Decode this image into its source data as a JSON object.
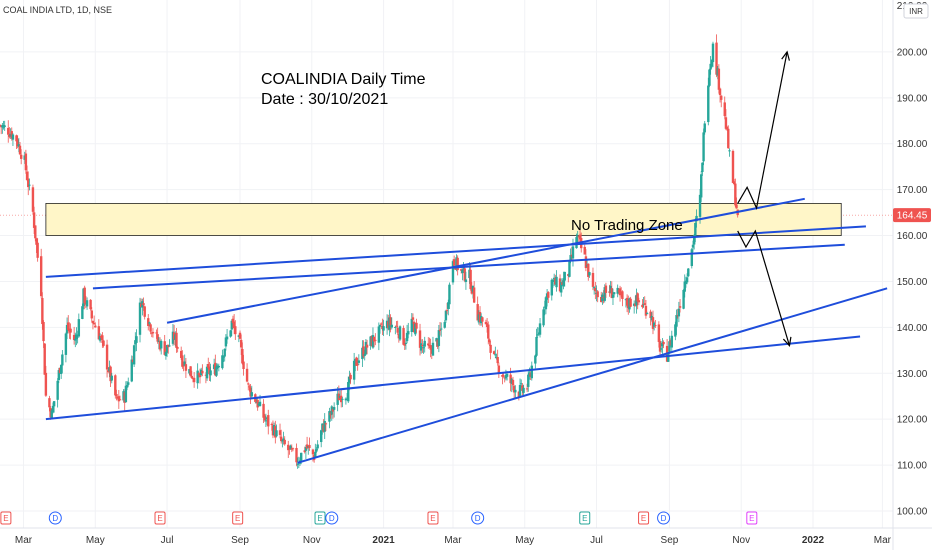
{
  "header": {
    "symbol_title": "COAL INDIA LTD, 1D, NSE",
    "currency_badge": "INR"
  },
  "annotations": {
    "title_line1": "COALINDIA Daily Time",
    "title_line2": "Date : 30/10/2021",
    "zone_label": "No Trading Zone"
  },
  "colors": {
    "up": "#26a69a",
    "down": "#ef5350",
    "trendline": "#1e4ddb",
    "zone_fill": "#fff6c8",
    "price_marker": "#ef5350",
    "earnings": "#ef5350",
    "dividend": "#2962ff",
    "split": "#26a69a",
    "upcoming": "#e040fb"
  },
  "chart_data": {
    "type": "candlestick",
    "instrument": "COAL INDIA LTD",
    "interval": "1D",
    "exchange": "NSE",
    "ylim": [
      100,
      210
    ],
    "yticks": [
      100,
      110,
      120,
      130,
      140,
      150,
      160,
      170,
      180,
      190,
      200
    ],
    "ytick_labels": [
      "100.00",
      "110.00",
      "120.00",
      "130.00",
      "140.00",
      "150.00",
      "160.00",
      "170.00",
      "180.00",
      "190.00",
      "200.00"
    ],
    "top_label": "210.00",
    "last_price": 164.45,
    "last_price_label": "164.45",
    "x_start": "2020-02-10",
    "x_end": "2022-03-10",
    "xticks": [
      {
        "date": "2020-03-01",
        "label": "Mar"
      },
      {
        "date": "2020-05-01",
        "label": "May"
      },
      {
        "date": "2020-07-01",
        "label": "Jul"
      },
      {
        "date": "2020-09-01",
        "label": "Sep"
      },
      {
        "date": "2020-11-01",
        "label": "Nov"
      },
      {
        "date": "2021-01-01",
        "label": "2021"
      },
      {
        "date": "2021-03-01",
        "label": "Mar"
      },
      {
        "date": "2021-05-01",
        "label": "May"
      },
      {
        "date": "2021-07-01",
        "label": "Jul"
      },
      {
        "date": "2021-09-01",
        "label": "Sep"
      },
      {
        "date": "2021-11-01",
        "label": "Nov"
      },
      {
        "date": "2022-01-01",
        "label": "2022"
      },
      {
        "date": "2022-03-01",
        "label": "Mar"
      }
    ],
    "price_path": [
      [
        "2020-02-10",
        184
      ],
      [
        "2020-02-17",
        183
      ],
      [
        "2020-02-24",
        181
      ],
      [
        "2020-03-02",
        176
      ],
      [
        "2020-03-09",
        165
      ],
      [
        "2020-03-16",
        148
      ],
      [
        "2020-03-20",
        125
      ],
      [
        "2020-03-25",
        121
      ],
      [
        "2020-03-31",
        130
      ],
      [
        "2020-04-07",
        140
      ],
      [
        "2020-04-14",
        137
      ],
      [
        "2020-04-21",
        147
      ],
      [
        "2020-04-28",
        142
      ],
      [
        "2020-05-05",
        138
      ],
      [
        "2020-05-12",
        131
      ],
      [
        "2020-05-19",
        124
      ],
      [
        "2020-05-26",
        125
      ],
      [
        "2020-06-02",
        134
      ],
      [
        "2020-06-09",
        146
      ],
      [
        "2020-06-16",
        141
      ],
      [
        "2020-06-23",
        137
      ],
      [
        "2020-06-30",
        135
      ],
      [
        "2020-07-07",
        138
      ],
      [
        "2020-07-14",
        133
      ],
      [
        "2020-07-21",
        130
      ],
      [
        "2020-07-28",
        129
      ],
      [
        "2020-08-04",
        130
      ],
      [
        "2020-08-11",
        131
      ],
      [
        "2020-08-18",
        135
      ],
      [
        "2020-08-25",
        141
      ],
      [
        "2020-09-01",
        136
      ],
      [
        "2020-09-08",
        127
      ],
      [
        "2020-09-15",
        124
      ],
      [
        "2020-09-22",
        120
      ],
      [
        "2020-09-29",
        118
      ],
      [
        "2020-10-06",
        115
      ],
      [
        "2020-10-13",
        113
      ],
      [
        "2020-10-20",
        111
      ],
      [
        "2020-10-27",
        114
      ],
      [
        "2020-11-03",
        112
      ],
      [
        "2020-11-10",
        118
      ],
      [
        "2020-11-17",
        121
      ],
      [
        "2020-11-24",
        125
      ],
      [
        "2020-12-01",
        126
      ],
      [
        "2020-12-08",
        132
      ],
      [
        "2020-12-15",
        135
      ],
      [
        "2020-12-22",
        137
      ],
      [
        "2020-12-29",
        139
      ],
      [
        "2021-01-05",
        141
      ],
      [
        "2021-01-12",
        140
      ],
      [
        "2021-01-19",
        137
      ],
      [
        "2021-01-26",
        141
      ],
      [
        "2021-02-02",
        136
      ],
      [
        "2021-02-09",
        135
      ],
      [
        "2021-02-16",
        137
      ],
      [
        "2021-02-23",
        143
      ],
      [
        "2021-03-01",
        155
      ],
      [
        "2021-03-08",
        152
      ],
      [
        "2021-03-15",
        151
      ],
      [
        "2021-03-22",
        143
      ],
      [
        "2021-03-29",
        140
      ],
      [
        "2021-04-05",
        133
      ],
      [
        "2021-04-12",
        130
      ],
      [
        "2021-04-19",
        128
      ],
      [
        "2021-04-26",
        126
      ],
      [
        "2021-05-03",
        127
      ],
      [
        "2021-05-10",
        135
      ],
      [
        "2021-05-17",
        145
      ],
      [
        "2021-05-24",
        150
      ],
      [
        "2021-05-31",
        149
      ],
      [
        "2021-06-07",
        152
      ],
      [
        "2021-06-14",
        160
      ],
      [
        "2021-06-21",
        155
      ],
      [
        "2021-06-28",
        148
      ],
      [
        "2021-07-05",
        147
      ],
      [
        "2021-07-12",
        148
      ],
      [
        "2021-07-19",
        147
      ],
      [
        "2021-07-26",
        145
      ],
      [
        "2021-08-02",
        146
      ],
      [
        "2021-08-09",
        145
      ],
      [
        "2021-08-16",
        143
      ],
      [
        "2021-08-23",
        136
      ],
      [
        "2021-08-30",
        134
      ],
      [
        "2021-09-06",
        141
      ],
      [
        "2021-09-13",
        149
      ],
      [
        "2021-09-20",
        157
      ],
      [
        "2021-09-27",
        168
      ],
      [
        "2021-10-01",
        186
      ],
      [
        "2021-10-05",
        197
      ],
      [
        "2021-10-08",
        201
      ],
      [
        "2021-10-12",
        195
      ],
      [
        "2021-10-15",
        190
      ],
      [
        "2021-10-19",
        184
      ],
      [
        "2021-10-22",
        177
      ],
      [
        "2021-10-26",
        170
      ],
      [
        "2021-10-29",
        164.45
      ]
    ],
    "events": [
      {
        "date": "2020-02-15",
        "kind": "earnings",
        "label": "E"
      },
      {
        "date": "2020-03-28",
        "kind": "dividend",
        "label": "D"
      },
      {
        "date": "2020-06-25",
        "kind": "earnings",
        "label": "E"
      },
      {
        "date": "2020-08-30",
        "kind": "earnings",
        "label": "E"
      },
      {
        "date": "2020-11-08",
        "kind": "split",
        "label": "E"
      },
      {
        "date": "2020-11-18",
        "kind": "dividend",
        "label": "D"
      },
      {
        "date": "2021-02-12",
        "kind": "earnings",
        "label": "E"
      },
      {
        "date": "2021-03-22",
        "kind": "dividend",
        "label": "D"
      },
      {
        "date": "2021-06-21",
        "kind": "split",
        "label": "E"
      },
      {
        "date": "2021-08-10",
        "kind": "earnings",
        "label": "E"
      },
      {
        "date": "2021-08-27",
        "kind": "dividend",
        "label": "D"
      },
      {
        "date": "2021-11-10",
        "kind": "upcoming",
        "label": "E"
      }
    ],
    "trendlines": [
      {
        "name": "lower-channel-support",
        "points": [
          [
            "2020-03-20",
            120
          ],
          [
            "2022-02-10",
            138
          ]
        ]
      },
      {
        "name": "rising-support",
        "points": [
          [
            "2020-10-20",
            110.5
          ],
          [
            "2022-03-05",
            148.5
          ]
        ]
      },
      {
        "name": "channel-line-1",
        "points": [
          [
            "2020-03-20",
            151
          ],
          [
            "2022-02-15",
            162
          ]
        ]
      },
      {
        "name": "channel-line-2",
        "points": [
          [
            "2020-04-29",
            148.5
          ],
          [
            "2022-01-28",
            158
          ]
        ]
      },
      {
        "name": "channel-line-3",
        "points": [
          [
            "2020-07-01",
            141
          ],
          [
            "2021-12-25",
            168
          ]
        ]
      }
    ],
    "zone": {
      "from": "2020-03-20",
      "to": "2022-01-25",
      "low": 160,
      "high": 167
    },
    "projections": [
      {
        "name": "bullish-projection",
        "points": [
          [
            "2021-10-29",
            167
          ],
          [
            "2021-11-06",
            170.5
          ],
          [
            "2021-11-14",
            166
          ],
          [
            "2021-12-10",
            200
          ]
        ]
      },
      {
        "name": "bearish-projection",
        "points": [
          [
            "2021-10-29",
            161
          ],
          [
            "2021-11-05",
            157.5
          ],
          [
            "2021-11-13",
            161
          ],
          [
            "2021-12-12",
            136
          ]
        ]
      }
    ]
  }
}
